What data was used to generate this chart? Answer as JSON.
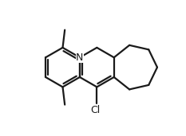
{
  "bg_color": "#ffffff",
  "line_color": "#1a1a1a",
  "line_width": 1.6,
  "label_color": "#1a1a1a",
  "fig_width": 2.33,
  "fig_height": 1.71,
  "dpi": 100,
  "N_fontsize": 9,
  "Cl_fontsize": 9
}
